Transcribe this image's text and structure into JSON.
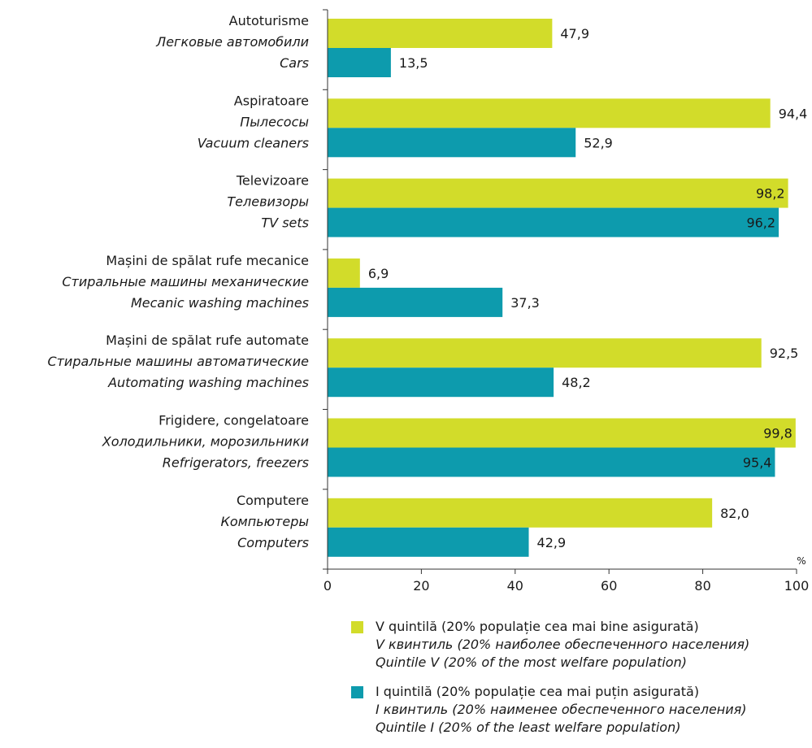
{
  "chart_data": {
    "type": "bar",
    "orientation": "horizontal",
    "categories": [
      [
        "Autoturisme",
        "Легковые автомобили",
        "Cars"
      ],
      [
        "Aspiratoare",
        "Пылесосы",
        "Vacuum cleaners"
      ],
      [
        "Televizoare",
        "Телевизоры",
        "TV sets"
      ],
      [
        "Mașini de spălat rufe mecanice",
        "Стиральные машины механические",
        "Mecanic washing machines"
      ],
      [
        "Mașini de spălat rufe automate",
        "Стиральные машины автоматические",
        "Automating washing machines"
      ],
      [
        "Frigidere, congelatoare",
        "Холодильники, морозильники",
        "Refrigerators, freezers"
      ],
      [
        "Computere",
        "Компьютеры",
        "Computers"
      ]
    ],
    "series": [
      {
        "legend": [
          "V quintilă (20% populație cea mai bine asigurată)",
          "V квинтиль (20% наиболее обеспеченного населения)",
          "Quintile V (20% of the most welfare population)"
        ],
        "color": "#d2dc2a",
        "values": [
          47.9,
          94.4,
          98.2,
          6.9,
          92.5,
          99.8,
          82.0
        ],
        "labels": [
          "47,9",
          "94,4",
          "98,2",
          "6,9",
          "92,5",
          "99,8",
          "82,0"
        ]
      },
      {
        "legend": [
          "I quintilă (20% populație cea mai puțin asigurată)",
          "I квинтиль (20% наименее обеспеченного населения)",
          "Quintile I (20% of the least welfare population)"
        ],
        "color": "#0d9bad",
        "values": [
          13.5,
          52.9,
          96.2,
          37.3,
          48.2,
          95.4,
          42.9
        ],
        "labels": [
          "13,5",
          "52,9",
          "96,2",
          "37,3",
          "48,2",
          "95,4",
          "42,9"
        ]
      }
    ],
    "xlim": [
      0,
      100
    ],
    "xticks": [
      "0",
      "20",
      "40",
      "60",
      "80",
      "100"
    ],
    "unit": "%",
    "legend_position": "bottom"
  }
}
